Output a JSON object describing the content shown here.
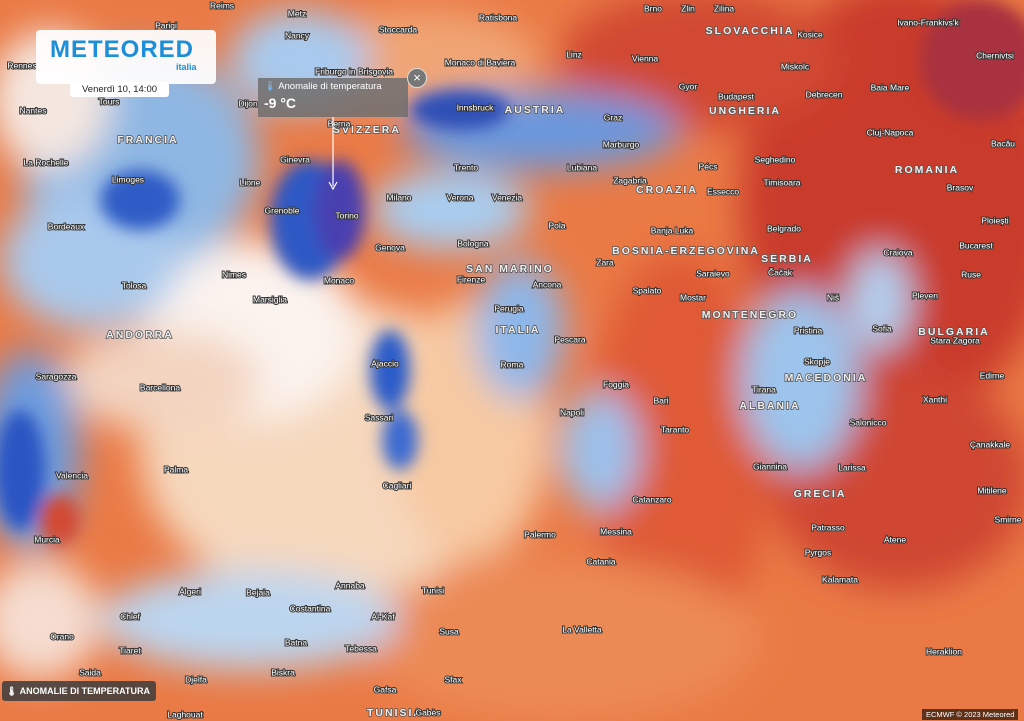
{
  "header": {
    "logo": "METEORED",
    "logo_sub": "italia",
    "date": "Venerdì 10, 14:00"
  },
  "tooltip": {
    "title": "Anomalie di temperatura",
    "value": "-9 °C"
  },
  "layer_button": {
    "label": "ANOMALIE DI TEMPERATURA"
  },
  "credit": "ECMWF © 2023 Meteored",
  "countries": [
    "FRANCIA",
    "SVIZZERA",
    "AUSTRIA",
    "SLOVACCHIA",
    "UNGHERIA",
    "ROMANIA",
    "CROAZIA",
    "BOSNIA-ERZEGOVINA",
    "SERBIA",
    "SAN MARINO",
    "ITALIA",
    "MONTENEGRO",
    "BULGARIA",
    "ANDORRA",
    "MACEDONIA",
    "ALBANIA",
    "GRECIA",
    "TUNISIA"
  ],
  "cities": [
    "Brno",
    "Zlin",
    "Zilina",
    "Ivano-Frankivs'k",
    "Reims",
    "Metz",
    "Parigi",
    "Nancy",
    "Stoccarda",
    "Ratisbona",
    "Kosice",
    "Chernivtsi",
    "Linz",
    "Vienna",
    "Miskolc",
    "Monaco di Baviera",
    "Friburgo in Brisgovia",
    "Baia Mare",
    "Gyor",
    "Budapest",
    "Debrecen",
    "Tours",
    "Nantes",
    "Innsbruck",
    "Graz",
    "Cluj-Napoca",
    "Bacău",
    "Berna",
    "Ginevra",
    "Marburgo",
    "La Rochelle",
    "Lubiana",
    "Pécs",
    "Seghedino",
    "Trento",
    "Limoges",
    "Lione",
    "Milano",
    "Verona",
    "Venezia",
    "Zagabria",
    "Essecco",
    "Timisoara",
    "Brasov",
    "Grenoble",
    "Torino",
    "Bordeaux",
    "Pola",
    "Banja Luka",
    "Ploiești",
    "Belgrado",
    "Genova",
    "Bologna",
    "Craiova",
    "Bucarest",
    "Zara",
    "Saraievo",
    "Čačak",
    "Ruse",
    "Nimes",
    "Firenze",
    "Ancona",
    "Monaco",
    "Tolosa",
    "Marsiglia",
    "Spalato",
    "Mostar",
    "Niš",
    "Pleven",
    "Perugia",
    "Pristina",
    "Sofia",
    "Stara Zagora",
    "Pescara",
    "Skopje",
    "Ajaccio",
    "Roma",
    "Saragozza",
    "Edirne",
    "Barcellona",
    "Foggia",
    "Tirana",
    "Xanthi",
    "Bari",
    "Napoli",
    "Sassari",
    "Salonicco",
    "Taranto",
    "Çanakkale",
    "Valencia",
    "Palma",
    "Giannina",
    "Larissa",
    "Cagliari",
    "Catanzaro",
    "Mitilene",
    "Patrasso",
    "Messina",
    "Smirne",
    "Palermo",
    "Murcia",
    "Atene",
    "Pyrgos",
    "Catania",
    "Kalamata",
    "Annaba",
    "Algeri",
    "Bejaia",
    "Tunisi",
    "Costantina",
    "Chlef",
    "Al-Kaf",
    "Susa",
    "La Valletta",
    "Orano",
    "Tiaret",
    "Batna",
    "Tebessa",
    "Heraklion",
    "Saida",
    "Biskra",
    "Djelfa",
    "Sfax",
    "Gafsa",
    "Gabès",
    "Laghouat",
    "Dijon",
    "Rennes"
  ]
}
